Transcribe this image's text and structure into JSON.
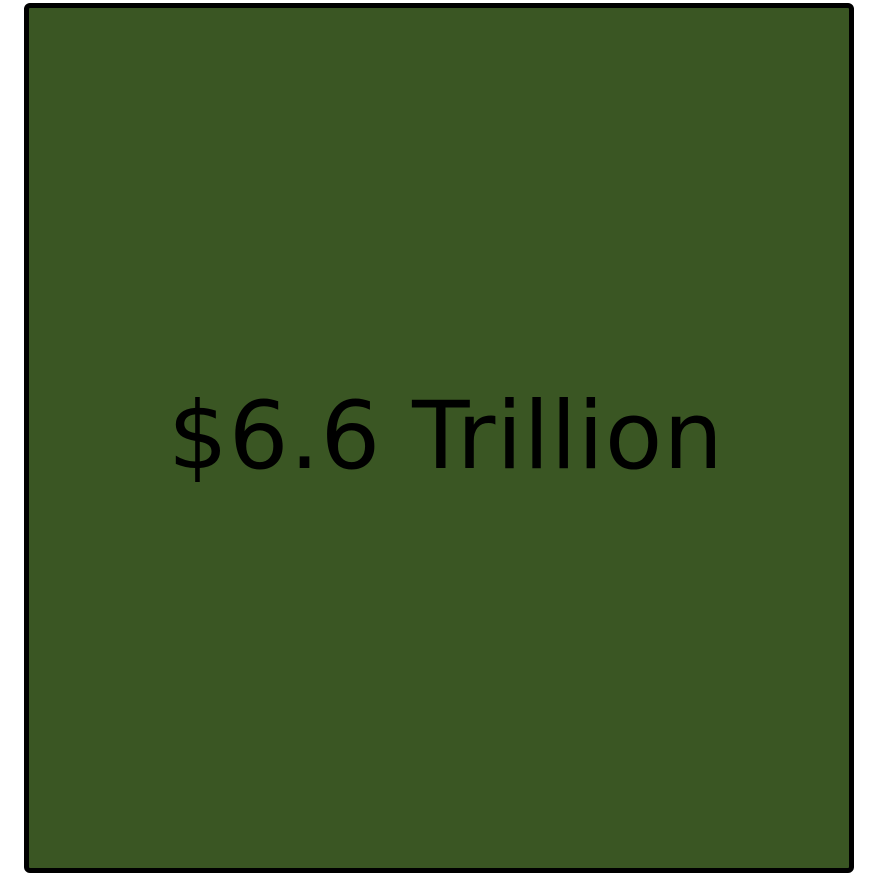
{
  "box": {
    "value_text": "$6.6 Trillion",
    "fill_color": "#3a5623",
    "border_color": "#000000",
    "text_color": "#000000"
  }
}
